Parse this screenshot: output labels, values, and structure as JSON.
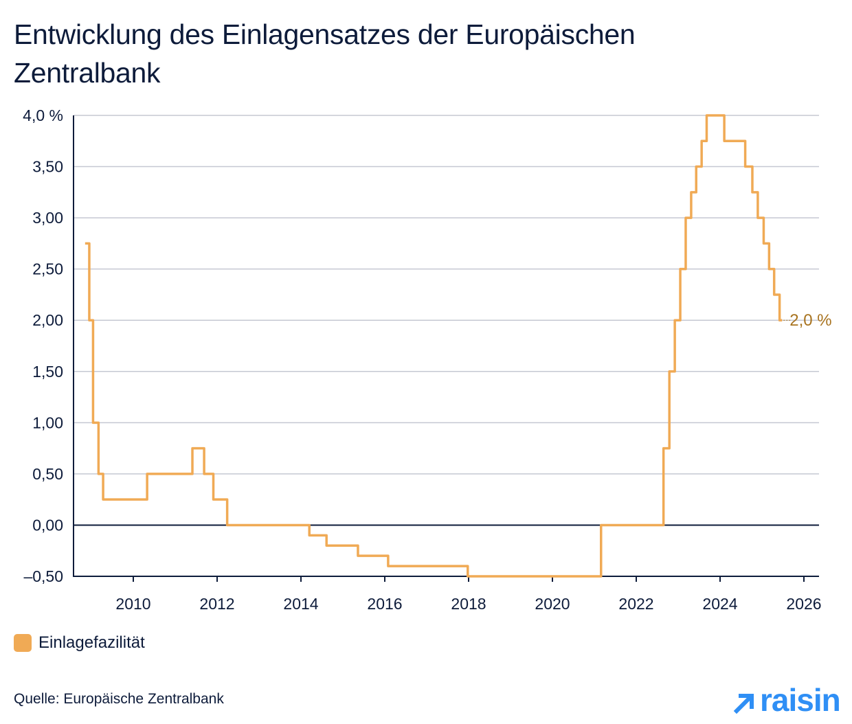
{
  "title": "Entwicklung des Einlagensatzes der Europäischen Zentralbank",
  "colors": {
    "line": "#f0aa55",
    "label": "#a8731f",
    "text": "#0d1b3a",
    "grid": "#c5c8d2",
    "brand": "#2f8ff5"
  },
  "chart_data": {
    "type": "line",
    "step": true,
    "title": "Entwicklung des Einlagensatzes der Europäischen Zentralbank",
    "xlabel": "",
    "ylabel": "",
    "xlim": [
      2008.57,
      2026.35
    ],
    "ylim": [
      -0.5,
      4.0
    ],
    "grid": "horizontal",
    "legend_position": "bottom-left",
    "x_ticks": [
      "2010",
      "2012",
      "2014",
      "2016",
      "2018",
      "2020",
      "2022",
      "2024",
      "2026"
    ],
    "y_ticks": [
      {
        "v": 4.0,
        "label": "4,0 %"
      },
      {
        "v": 3.5,
        "label": "3,50"
      },
      {
        "v": 3.0,
        "label": "3,00"
      },
      {
        "v": 2.5,
        "label": "2,50"
      },
      {
        "v": 2.0,
        "label": "2,00"
      },
      {
        "v": 1.5,
        "label": "1,50"
      },
      {
        "v": 1.0,
        "label": "1,00"
      },
      {
        "v": 0.5,
        "label": "0,50"
      },
      {
        "v": 0.0,
        "label": "0,00"
      },
      {
        "v": -0.5,
        "label": "–0,50"
      }
    ],
    "series": [
      {
        "name": "Einlagefazilität",
        "x": [
          2008.85,
          2008.95,
          2009.04,
          2009.17,
          2009.28,
          2010.33,
          2011.41,
          2011.69,
          2011.91,
          2012.24,
          2014.2,
          2014.61,
          2015.36,
          2016.08,
          2017.98,
          2021.16,
          2022.65,
          2022.79,
          2022.92,
          2023.05,
          2023.18,
          2023.31,
          2023.43,
          2023.56,
          2023.68,
          2024.1,
          2024.6,
          2024.77,
          2024.9,
          2025.04,
          2025.17,
          2025.29,
          2025.42,
          2025.48
        ],
        "y": [
          2.75,
          2.0,
          1.0,
          0.5,
          0.25,
          0.5,
          0.75,
          0.5,
          0.25,
          0.0,
          -0.1,
          -0.2,
          -0.3,
          -0.4,
          -0.5,
          0.0,
          0.75,
          1.5,
          2.0,
          2.5,
          3.0,
          3.25,
          3.5,
          3.75,
          4.0,
          3.75,
          3.5,
          3.25,
          3.0,
          2.75,
          2.5,
          2.25,
          2.0,
          2.0
        ]
      }
    ],
    "annotations": [
      {
        "text": "2,0 %",
        "x": 2025.48,
        "y": 2.0
      }
    ]
  },
  "legend": {
    "label": "Einlagefazilität"
  },
  "source": "Quelle: Europäische Zentralbank",
  "logo": {
    "text": "raisin",
    "icon": "arrow-up-right-icon"
  }
}
